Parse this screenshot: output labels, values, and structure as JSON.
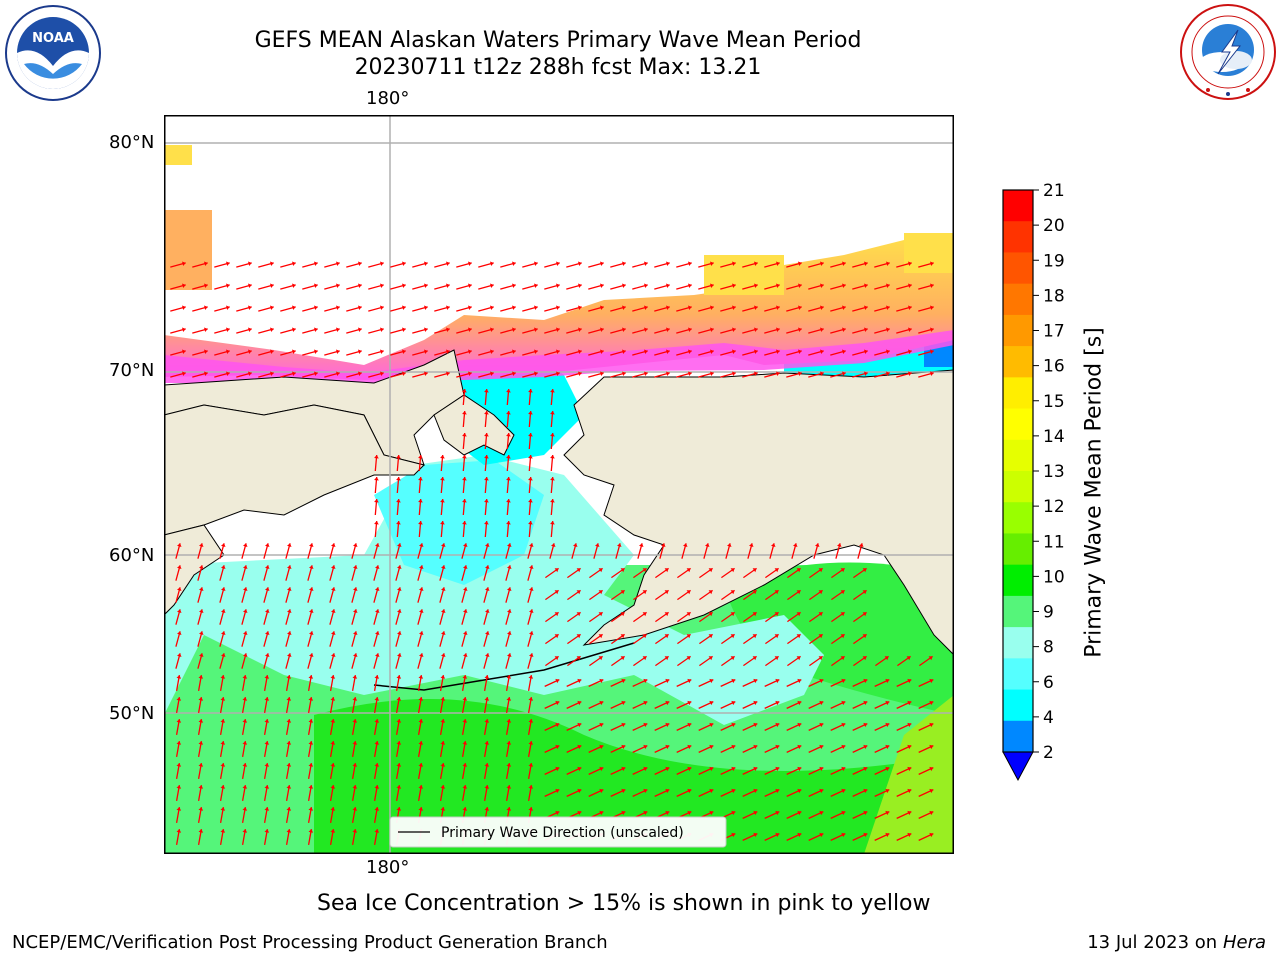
{
  "header": {
    "title_line1": "GEFS MEAN Alaskan Waters Primary Wave Mean Period",
    "title_line2": "20230711 t12z 288h fcst   Max: 13.21"
  },
  "logos": {
    "left_logo_text": "NOAA",
    "left_logo_ring": "NATIONAL OCEANIC AND ATMOSPHERIC ADMINISTRATION · U.S. DEPARTMENT OF COMMERCE",
    "right_logo_ring": "NATIONAL WEATHER SERVICE"
  },
  "map": {
    "lon_top_label": "180°",
    "lon_bottom_label": "180°",
    "lat_labels": [
      "80°N",
      "70°N",
      "60°N",
      "50°N"
    ],
    "legend_text": "Primary Wave Direction (unscaled)",
    "land_color": "#efebd8",
    "arrow_color": "#ff0000"
  },
  "colorbar": {
    "label": "Primary Wave Mean Period [s]",
    "ticks": [
      "21",
      "20",
      "19",
      "18",
      "17",
      "16",
      "15",
      "14",
      "13",
      "12",
      "11",
      "10",
      "9",
      "8",
      "6",
      "4",
      "2"
    ],
    "colors": [
      "#ff0000",
      "#ff3300",
      "#ff5500",
      "#ff7700",
      "#ff9900",
      "#ffbb00",
      "#ffee00",
      "#ffff00",
      "#e6ff00",
      "#ccff00",
      "#99ff00",
      "#66ee00",
      "#00ee00",
      "#55f57a",
      "#99ffee",
      "#55ffff",
      "#00ffff",
      "#0088ff"
    ],
    "extend_color": "#0000ff"
  },
  "footer": {
    "sea_ice_note": "Sea Ice Concentration > 15% is shown in pink to yellow",
    "branch": "NCEP/EMC/Verification Post Processing Product Generation Branch",
    "date_prefix": "13 Jul 2023 on ",
    "host": "Hera"
  }
}
